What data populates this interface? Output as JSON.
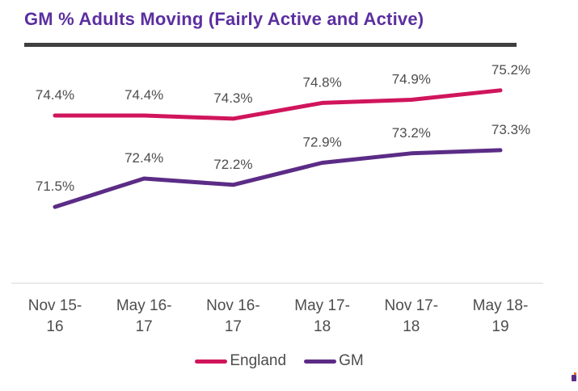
{
  "title": "GM % Adults Moving (Fairly Active and Active)",
  "chart_data": {
    "type": "line",
    "title": "GM % Adults Moving (Fairly Active and Active)",
    "categories": [
      "Nov 15-16",
      "May 16-17",
      "Nov 16-17",
      "May 17-18",
      "Nov 17-18",
      "May 18-19"
    ],
    "categories_display": [
      [
        "Nov 15-",
        "16"
      ],
      [
        "May 16-",
        "17"
      ],
      [
        "Nov 16-",
        "17"
      ],
      [
        "May 17-",
        "18"
      ],
      [
        "Nov 17-",
        "18"
      ],
      [
        "May 18-",
        "19"
      ]
    ],
    "series": [
      {
        "name": "England",
        "color": "#D0155C",
        "values": [
          74.4,
          74.4,
          74.3,
          74.8,
          74.9,
          75.2
        ],
        "labels": [
          "74.4%",
          "74.4%",
          "74.3%",
          "74.8%",
          "74.9%",
          "75.2%"
        ]
      },
      {
        "name": "GM",
        "color": "#5B2C86",
        "values": [
          71.5,
          72.4,
          72.2,
          72.9,
          73.2,
          73.3
        ],
        "labels": [
          "71.5%",
          "72.4%",
          "72.2%",
          "72.9%",
          "73.2%",
          "73.3%"
        ]
      }
    ],
    "ylim": [
      70.5,
      76.0
    ],
    "grid": false,
    "data_labels": true,
    "legend_position": "bottom",
    "legend": [
      "England",
      "GM"
    ]
  },
  "colors": {
    "title_text": "#5B2FA0",
    "title_rule": "#3F3F3F",
    "axis_line": "#D9D9D9",
    "label_text": "#4D4D4D",
    "england_line": "#D0155C",
    "gm_line": "#5B2C86",
    "corner_mark_purple": "#5B2C86",
    "corner_mark_orange": "#E8732A"
  }
}
